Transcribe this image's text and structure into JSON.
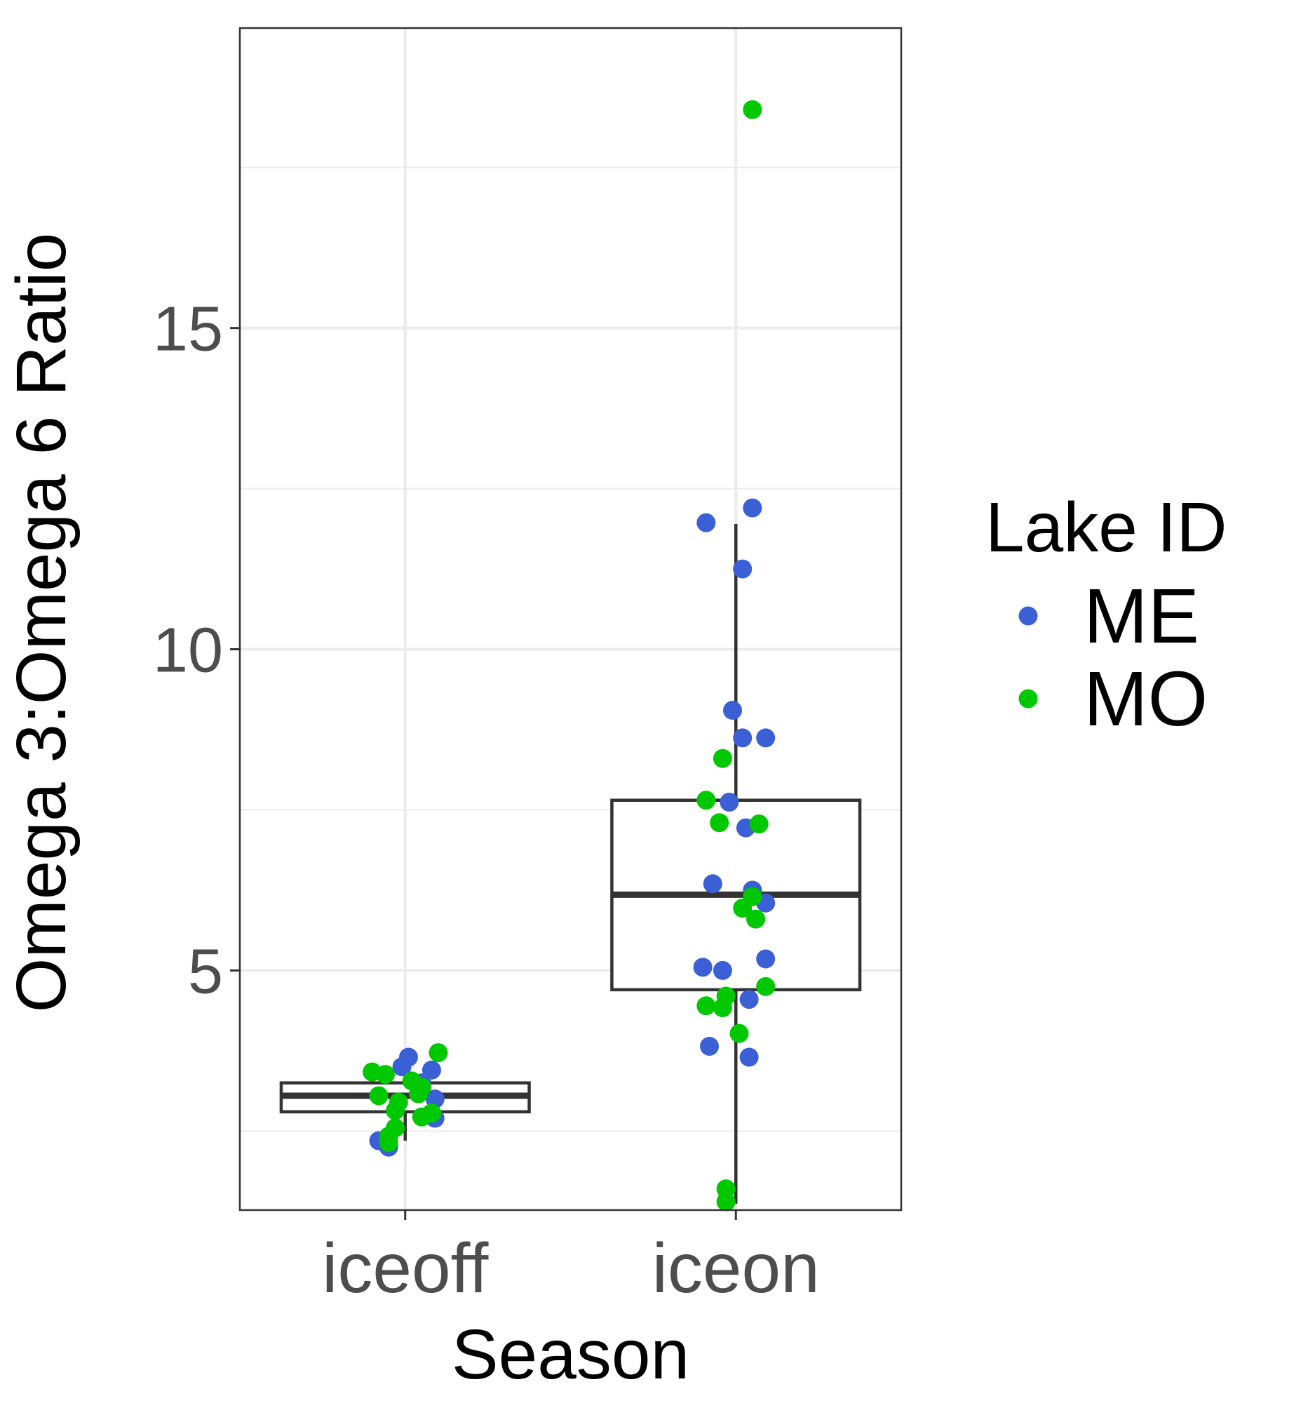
{
  "chart_data": {
    "type": "boxplot",
    "xlabel": "Season",
    "ylabel": "Omega 3:Omega 6 Ratio",
    "categories": [
      "iceoff",
      "iceon"
    ],
    "ylim": [
      1.27,
      19.67
    ],
    "yticks": [
      5,
      10,
      15
    ],
    "grid": true,
    "legend": {
      "title": "Lake ID",
      "position": "right",
      "entries": [
        {
          "label": "ME",
          "color": "#3b5fd4"
        },
        {
          "label": "MO",
          "color": "#00c800"
        }
      ]
    },
    "boxes": [
      {
        "category": "iceoff",
        "whisker_low": 2.35,
        "q1": 2.8,
        "median": 3.05,
        "q3": 3.25,
        "whisker_high": 3.65
      },
      {
        "category": "iceon",
        "whisker_low": 1.37,
        "q1": 4.7,
        "median": 6.18,
        "q3": 7.65,
        "whisker_high": 11.95
      }
    ],
    "points": [
      {
        "category": "iceoff",
        "lake": "ME",
        "x": 0.01,
        "y": 3.65
      },
      {
        "category": "iceoff",
        "lake": "ME",
        "x": -0.01,
        "y": 3.5
      },
      {
        "category": "iceoff",
        "lake": "ME",
        "x": 0.08,
        "y": 3.45
      },
      {
        "category": "iceoff",
        "lake": "ME",
        "x": 0.05,
        "y": 3.25
      },
      {
        "category": "iceoff",
        "lake": "ME",
        "x": 0.09,
        "y": 3.0
      },
      {
        "category": "iceoff",
        "lake": "ME",
        "x": 0.09,
        "y": 2.7
      },
      {
        "category": "iceoff",
        "lake": "ME",
        "x": -0.08,
        "y": 2.35
      },
      {
        "category": "iceoff",
        "lake": "ME",
        "x": -0.05,
        "y": 2.25
      },
      {
        "category": "iceoff",
        "lake": "MO",
        "x": 0.1,
        "y": 3.72
      },
      {
        "category": "iceoff",
        "lake": "MO",
        "x": -0.1,
        "y": 3.42
      },
      {
        "category": "iceoff",
        "lake": "MO",
        "x": -0.06,
        "y": 3.38
      },
      {
        "category": "iceoff",
        "lake": "MO",
        "x": 0.02,
        "y": 3.28
      },
      {
        "category": "iceoff",
        "lake": "MO",
        "x": 0.05,
        "y": 3.18
      },
      {
        "category": "iceoff",
        "lake": "MO",
        "x": -0.08,
        "y": 3.05
      },
      {
        "category": "iceoff",
        "lake": "MO",
        "x": 0.04,
        "y": 3.08
      },
      {
        "category": "iceoff",
        "lake": "MO",
        "x": -0.02,
        "y": 2.95
      },
      {
        "category": "iceoff",
        "lake": "MO",
        "x": 0.08,
        "y": 2.78
      },
      {
        "category": "iceoff",
        "lake": "MO",
        "x": -0.03,
        "y": 2.82
      },
      {
        "category": "iceoff",
        "lake": "MO",
        "x": 0.05,
        "y": 2.72
      },
      {
        "category": "iceoff",
        "lake": "MO",
        "x": -0.03,
        "y": 2.55
      },
      {
        "category": "iceoff",
        "lake": "MO",
        "x": -0.05,
        "y": 2.42
      },
      {
        "category": "iceoff",
        "lake": "MO",
        "x": -0.05,
        "y": 2.32
      },
      {
        "category": "iceon",
        "lake": "ME",
        "x": 0.05,
        "y": 12.2
      },
      {
        "category": "iceon",
        "lake": "ME",
        "x": -0.09,
        "y": 11.97
      },
      {
        "category": "iceon",
        "lake": "ME",
        "x": 0.02,
        "y": 11.25
      },
      {
        "category": "iceon",
        "lake": "ME",
        "x": -0.01,
        "y": 9.05
      },
      {
        "category": "iceon",
        "lake": "ME",
        "x": 0.02,
        "y": 8.62
      },
      {
        "category": "iceon",
        "lake": "ME",
        "x": 0.09,
        "y": 8.62
      },
      {
        "category": "iceon",
        "lake": "ME",
        "x": -0.02,
        "y": 7.62
      },
      {
        "category": "iceon",
        "lake": "ME",
        "x": 0.03,
        "y": 7.22
      },
      {
        "category": "iceon",
        "lake": "ME",
        "x": -0.07,
        "y": 6.35
      },
      {
        "category": "iceon",
        "lake": "ME",
        "x": 0.05,
        "y": 6.25
      },
      {
        "category": "iceon",
        "lake": "ME",
        "x": 0.09,
        "y": 6.05
      },
      {
        "category": "iceon",
        "lake": "ME",
        "x": 0.09,
        "y": 5.18
      },
      {
        "category": "iceon",
        "lake": "ME",
        "x": -0.1,
        "y": 5.05
      },
      {
        "category": "iceon",
        "lake": "ME",
        "x": -0.04,
        "y": 5.0
      },
      {
        "category": "iceon",
        "lake": "ME",
        "x": 0.04,
        "y": 4.55
      },
      {
        "category": "iceon",
        "lake": "ME",
        "x": -0.08,
        "y": 3.82
      },
      {
        "category": "iceon",
        "lake": "ME",
        "x": 0.04,
        "y": 3.65
      },
      {
        "category": "iceon",
        "lake": "MO",
        "x": 0.05,
        "y": 18.4
      },
      {
        "category": "iceon",
        "lake": "MO",
        "x": -0.04,
        "y": 8.3
      },
      {
        "category": "iceon",
        "lake": "MO",
        "x": -0.09,
        "y": 7.65
      },
      {
        "category": "iceon",
        "lake": "MO",
        "x": -0.05,
        "y": 7.3
      },
      {
        "category": "iceon",
        "lake": "MO",
        "x": 0.07,
        "y": 7.28
      },
      {
        "category": "iceon",
        "lake": "MO",
        "x": 0.05,
        "y": 6.15
      },
      {
        "category": "iceon",
        "lake": "MO",
        "x": 0.02,
        "y": 5.97
      },
      {
        "category": "iceon",
        "lake": "MO",
        "x": 0.06,
        "y": 5.8
      },
      {
        "category": "iceon",
        "lake": "MO",
        "x": 0.09,
        "y": 4.75
      },
      {
        "category": "iceon",
        "lake": "MO",
        "x": -0.03,
        "y": 4.6
      },
      {
        "category": "iceon",
        "lake": "MO",
        "x": -0.09,
        "y": 4.45
      },
      {
        "category": "iceon",
        "lake": "MO",
        "x": -0.04,
        "y": 4.42
      },
      {
        "category": "iceon",
        "lake": "MO",
        "x": 0.01,
        "y": 4.02
      },
      {
        "category": "iceon",
        "lake": "MO",
        "x": -0.03,
        "y": 1.6
      },
      {
        "category": "iceon",
        "lake": "MO",
        "x": -0.03,
        "y": 1.4
      }
    ]
  }
}
